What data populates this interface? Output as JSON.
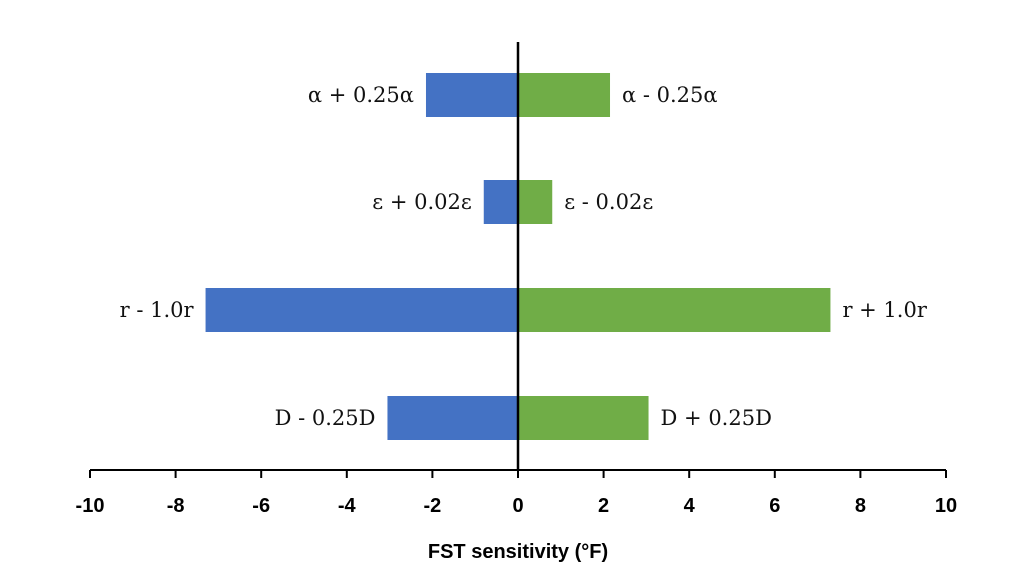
{
  "chart_data": {
    "type": "bar",
    "orientation": "horizontal",
    "title": "",
    "xlabel": "FST sensitivity (°F)",
    "ylabel": "",
    "xlim": [
      -10,
      10
    ],
    "xticks": [
      -10,
      -8,
      -6,
      -4,
      -2,
      0,
      2,
      4,
      6,
      8,
      10
    ],
    "grid": false,
    "legend": "none",
    "colors": {
      "negative": "#4472C4",
      "positive": "#70AD47",
      "axis": "#000000"
    },
    "rows": [
      {
        "negative": {
          "label": "α + 0.25α",
          "value": -2.15
        },
        "positive": {
          "label": "α - 0.25α",
          "value": 2.15
        }
      },
      {
        "negative": {
          "label": "ε + 0.02ε",
          "value": -0.8
        },
        "positive": {
          "label": "ε - 0.02ε",
          "value": 0.8
        }
      },
      {
        "negative": {
          "label": "r - 1.0r",
          "value": -7.3
        },
        "positive": {
          "label": "r + 1.0r",
          "value": 7.3
        }
      },
      {
        "negative": {
          "label": "D - 0.25D",
          "value": -3.05
        },
        "positive": {
          "label": "D + 0.25D",
          "value": 3.05
        }
      }
    ]
  }
}
